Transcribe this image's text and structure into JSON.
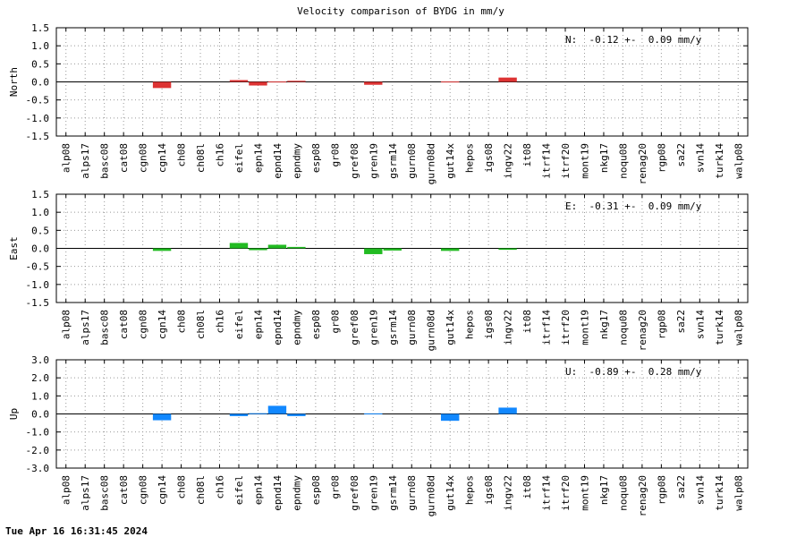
{
  "title": "Velocity comparison of BYDG in mm/y",
  "timestamp": "Tue Apr 16 16:31:45 2024",
  "chart_data": [
    {
      "type": "bar",
      "ylabel": "North",
      "annotation": "N:  -0.12 +-  0.09 mm/y",
      "color": "#dd3333",
      "ylim": [
        -1.5,
        1.5
      ],
      "yticks": [
        "1.5",
        "1.0",
        "0.5",
        "0.0",
        "-0.5",
        "-1.0",
        "-1.5"
      ],
      "grid": true,
      "categories": [
        "alp08",
        "alps17",
        "basc08",
        "cat08",
        "cgn08",
        "cgn14",
        "ch08",
        "ch08l",
        "ch16",
        "eifel",
        "epn14",
        "epnd14",
        "epndmy",
        "esp08",
        "gr08",
        "gref08",
        "gren19",
        "gsrm14",
        "gurn08",
        "gurn08d",
        "gut14x",
        "hepos",
        "igs08",
        "ingv22",
        "it08",
        "itrf14",
        "itrf20",
        "mont19",
        "nkg17",
        "noqu08",
        "renag20",
        "rgp08",
        "sa22",
        "svn14",
        "turk14",
        "walp08"
      ],
      "values": [
        null,
        null,
        null,
        null,
        null,
        -0.17,
        null,
        null,
        null,
        0.05,
        -0.1,
        0.01,
        0.03,
        null,
        null,
        null,
        -0.08,
        null,
        null,
        null,
        0.01,
        null,
        null,
        0.12,
        null,
        null,
        null,
        null,
        null,
        null,
        null,
        null,
        null,
        null,
        null,
        null
      ]
    },
    {
      "type": "bar",
      "ylabel": "East",
      "annotation": "E:  -0.31 +-  0.09 mm/y",
      "color": "#22bb22",
      "ylim": [
        -1.5,
        1.5
      ],
      "yticks": [
        "1.5",
        "1.0",
        "0.5",
        "0.0",
        "-0.5",
        "-1.0",
        "-1.5"
      ],
      "grid": true,
      "categories": [
        "alp08",
        "alps17",
        "basc08",
        "cat08",
        "cgn08",
        "cgn14",
        "ch08",
        "ch08l",
        "ch16",
        "eifel",
        "epn14",
        "epnd14",
        "epndmy",
        "esp08",
        "gr08",
        "gref08",
        "gren19",
        "gsrm14",
        "gurn08",
        "gurn08d",
        "gut14x",
        "hepos",
        "igs08",
        "ingv22",
        "it08",
        "itrf14",
        "itrf20",
        "mont19",
        "nkg17",
        "noqu08",
        "renag20",
        "rgp08",
        "sa22",
        "svn14",
        "turk14",
        "walp08"
      ],
      "values": [
        null,
        null,
        null,
        null,
        null,
        -0.07,
        null,
        null,
        null,
        0.15,
        -0.05,
        0.1,
        0.04,
        null,
        null,
        null,
        -0.16,
        -0.06,
        null,
        null,
        -0.07,
        null,
        null,
        -0.04,
        null,
        null,
        null,
        null,
        null,
        null,
        null,
        null,
        null,
        null,
        null,
        null
      ]
    },
    {
      "type": "bar",
      "ylabel": "Up",
      "annotation": "U:  -0.89 +-  0.28 mm/y",
      "color": "#1188ff",
      "ylim": [
        -3.0,
        3.0
      ],
      "yticks": [
        "3.0",
        "2.0",
        "1.0",
        "0.0",
        "-1.0",
        "-2.0",
        "-3.0"
      ],
      "grid": true,
      "categories": [
        "alp08",
        "alps17",
        "basc08",
        "cat08",
        "cgn08",
        "cgn14",
        "ch08",
        "ch08l",
        "ch16",
        "eifel",
        "epn14",
        "epnd14",
        "epndmy",
        "esp08",
        "gr08",
        "gref08",
        "gren19",
        "gsrm14",
        "gurn08",
        "gurn08d",
        "gut14x",
        "hepos",
        "igs08",
        "ingv22",
        "it08",
        "itrf14",
        "itrf20",
        "mont19",
        "nkg17",
        "noqu08",
        "renag20",
        "rgp08",
        "sa22",
        "svn14",
        "turk14",
        "walp08"
      ],
      "values": [
        null,
        null,
        null,
        null,
        null,
        -0.35,
        null,
        null,
        null,
        -0.12,
        0.04,
        0.45,
        -0.12,
        null,
        null,
        null,
        0.03,
        null,
        null,
        null,
        -0.38,
        null,
        null,
        0.35,
        null,
        null,
        null,
        null,
        null,
        null,
        null,
        null,
        null,
        null,
        null,
        null
      ]
    }
  ]
}
